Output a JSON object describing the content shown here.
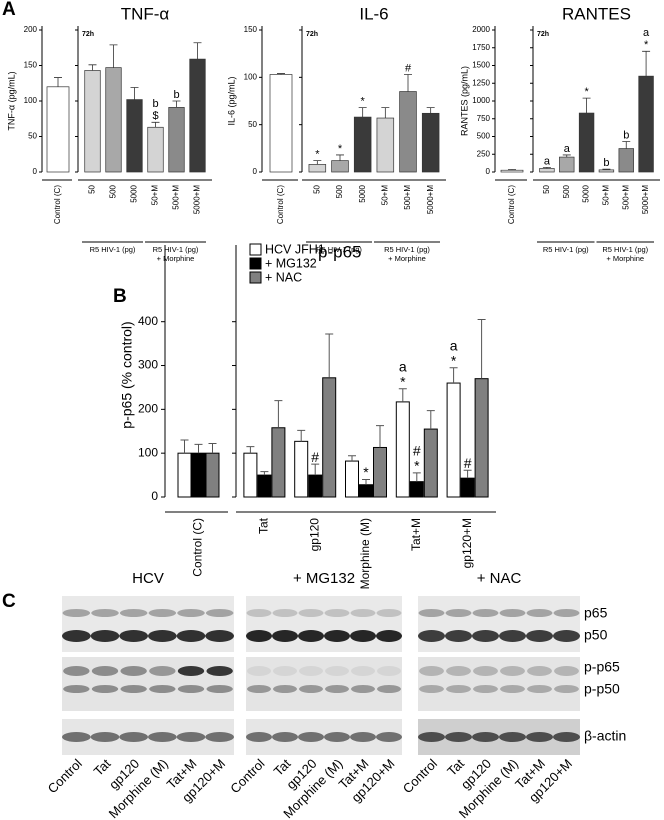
{
  "panel_labels": [
    "A",
    "B",
    "C"
  ],
  "chart_data": [
    {
      "type": "bar",
      "title": "TNF-α",
      "ylabel": "TNF-α (pg/mL)",
      "time_label": "72h",
      "categories": [
        "Control (C)",
        "50",
        "500",
        "5000",
        "50+M",
        "500+M",
        "5000+M"
      ],
      "values": [
        120,
        143,
        147,
        102,
        63,
        91,
        159
      ],
      "errors": [
        13,
        8,
        32,
        17,
        7,
        9,
        23
      ],
      "colors": [
        "#ffffff",
        "#d4d4d4",
        "#a8a8a8",
        "#3a3a3a",
        "#d4d4d4",
        "#8a8a8a",
        "#3a3a3a"
      ],
      "annotations": [
        null,
        null,
        null,
        null,
        [
          "b",
          "$"
        ],
        [
          "b"
        ],
        null
      ],
      "groups": [
        [
          "R5 HIV-1 (pg)"
        ],
        [
          "R5 HIV-1 (pg)",
          "+ Morphine"
        ]
      ],
      "ylim": [
        0,
        200
      ],
      "yticks": [
        0,
        50,
        100,
        150,
        200
      ]
    },
    {
      "type": "bar",
      "title": "IL-6",
      "ylabel": "IL-6 (pg/mL)",
      "time_label": "72h",
      "categories": [
        "Control (C)",
        "50",
        "500",
        "5000",
        "50+M",
        "500+M",
        "5000+M"
      ],
      "values": [
        103,
        8,
        12,
        58,
        57,
        85,
        62
      ],
      "errors": [
        1,
        4,
        6,
        10,
        11,
        18,
        6
      ],
      "colors": [
        "#ffffff",
        "#d4d4d4",
        "#a8a8a8",
        "#3a3a3a",
        "#d4d4d4",
        "#8a8a8a",
        "#3a3a3a"
      ],
      "annotations": [
        null,
        [
          "*"
        ],
        [
          "*"
        ],
        [
          "*"
        ],
        null,
        [
          "#"
        ],
        null
      ],
      "groups": [
        [
          "R5 HIV-1 (pg)"
        ],
        [
          "R5 HIV-1 (pg)",
          "+ Morphine"
        ]
      ],
      "ylim": [
        0,
        150
      ],
      "yticks": [
        0,
        50,
        100,
        150
      ]
    },
    {
      "type": "bar",
      "title": "RANTES",
      "ylabel": "RANTES (pg/mL)",
      "time_label": "72h",
      "categories": [
        "Control (C)",
        "50",
        "500",
        "5000",
        "50+M",
        "500+M",
        "5000+M"
      ],
      "values": [
        25,
        50,
        210,
        830,
        30,
        330,
        1350
      ],
      "errors": [
        10,
        15,
        30,
        210,
        10,
        100,
        350
      ],
      "colors": [
        "#ffffff",
        "#d4d4d4",
        "#a8a8a8",
        "#3a3a3a",
        "#d4d4d4",
        "#8a8a8a",
        "#3a3a3a"
      ],
      "annotations": [
        null,
        [
          "a"
        ],
        [
          "a"
        ],
        [
          "*"
        ],
        [
          "b"
        ],
        [
          "b"
        ],
        [
          "a",
          "*"
        ]
      ],
      "groups": [
        [
          "R5 HIV-1 (pg)"
        ],
        [
          "R5 HIV-1 (pg)",
          "+ Morphine"
        ]
      ],
      "ylim": [
        0,
        2000
      ],
      "yticks": [
        0,
        250,
        500,
        750,
        1000,
        1250,
        1500,
        1750,
        2000
      ]
    },
    {
      "type": "grouped_bar",
      "title": "p-p65",
      "ylabel": "p-p65 (% control)",
      "legend": "top-left",
      "categories": [
        "Control (C)",
        "Tat",
        "gp120",
        "Morphine (M)",
        "Tat+M",
        "gp120+M"
      ],
      "series": [
        {
          "name": "HCV JFH1",
          "color": "#ffffff",
          "values": [
            100,
            100,
            127,
            82,
            217,
            260
          ],
          "errors": [
            30,
            15,
            25,
            12,
            30,
            35
          ],
          "annotations": [
            null,
            null,
            null,
            null,
            [
              "a",
              "*"
            ],
            [
              "a",
              "*"
            ]
          ]
        },
        {
          "name": "+ MG132",
          "color": "#000000",
          "values": [
            100,
            50,
            50,
            28,
            35,
            43
          ],
          "errors": [
            20,
            8,
            25,
            12,
            20,
            18
          ],
          "annotations": [
            null,
            null,
            [
              "#"
            ],
            [
              "*"
            ],
            [
              "#",
              "*"
            ],
            [
              "#"
            ]
          ]
        },
        {
          "name": "+ NAC",
          "color": "#808080",
          "values": [
            100,
            158,
            272,
            113,
            155,
            270
          ],
          "errors": [
            22,
            62,
            100,
            50,
            42,
            135
          ],
          "annotations": [
            null,
            null,
            null,
            null,
            null,
            null
          ]
        }
      ],
      "ylim": [
        0,
        575
      ],
      "yticks": [
        0,
        100,
        200,
        300,
        400
      ]
    }
  ],
  "blot": {
    "groups": [
      "HCV",
      "+ MG132",
      "+ NAC"
    ],
    "bands": [
      "p65",
      "p50",
      "p-p65",
      "p-p50",
      "β-actin"
    ],
    "lanes": [
      "Control",
      "Tat",
      "gp120",
      "Morphine (M)",
      "Tat+M",
      "gp120+M"
    ]
  }
}
